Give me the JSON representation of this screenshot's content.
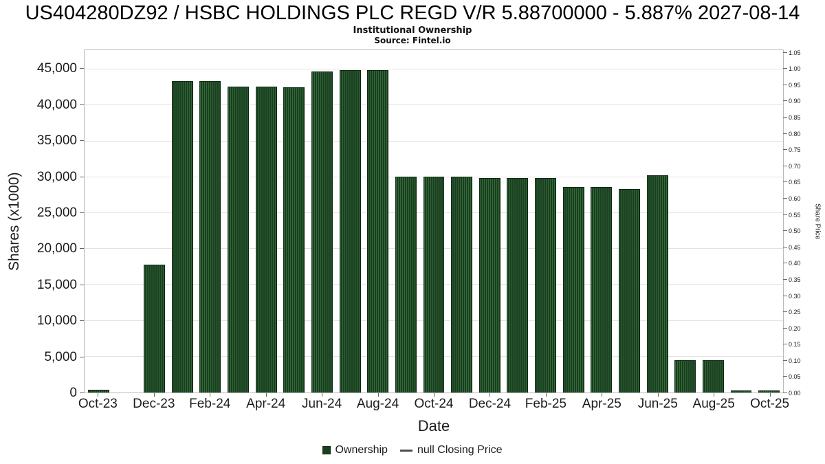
{
  "header": {
    "title": "US404280DZ92 / HSBC HOLDINGS PLC REGD V/R 5.88700000 - 5.887% 2027-08-14",
    "subtitle": "Institutional Ownership",
    "source": "Source: Fintel.io"
  },
  "axes": {
    "left_label": "Shares (x1000)",
    "right_label": "Share Price",
    "x_label": "Date"
  },
  "legend": {
    "ownership_label": "Ownership",
    "price_label": "null Closing Price"
  },
  "colors": {
    "bar_dark": "#1a3f20",
    "bar_stripe": "#336839",
    "bar_border": "#0e2913",
    "gridline": "#e2e2e2",
    "plot_border": "#b9b9b9"
  },
  "chart_data": {
    "type": "bar",
    "title": "Institutional Ownership",
    "xlabel": "Date",
    "ylabel_left": "Shares (x1000)",
    "ylabel_right": "Share Price",
    "ylim_left": [
      0,
      47700
    ],
    "right_scale_shares_per_price_unit": 45000,
    "grid": "horizontal",
    "legend_position": "bottom",
    "months": [
      "Oct-23",
      "Nov-23",
      "Dec-23",
      "Jan-24",
      "Feb-24",
      "Mar-24",
      "Apr-24",
      "May-24",
      "Jun-24",
      "Jul-24",
      "Aug-24",
      "Sep-24",
      "Oct-24",
      "Nov-24",
      "Dec-24",
      "Jan-25",
      "Feb-25",
      "Mar-25",
      "Apr-25",
      "May-25",
      "Jun-25",
      "Jul-25",
      "Aug-25",
      "Sep-25",
      "Oct-25"
    ],
    "ownership_shares_x1000": [
      400,
      0,
      17800,
      43400,
      43400,
      42600,
      42600,
      42500,
      44700,
      44900,
      44900,
      30100,
      30100,
      30100,
      29900,
      29900,
      29900,
      28600,
      28600,
      28400,
      30300,
      4500,
      4500,
      300,
      300
    ],
    "x_ticks": [
      {
        "month_index": 0,
        "label": "Oct-23"
      },
      {
        "month_index": 2,
        "label": "Dec-23"
      },
      {
        "month_index": 4,
        "label": "Feb-24"
      },
      {
        "month_index": 6,
        "label": "Apr-24"
      },
      {
        "month_index": 8,
        "label": "Jun-24"
      },
      {
        "month_index": 10,
        "label": "Aug-24"
      },
      {
        "month_index": 12,
        "label": "Oct-24"
      },
      {
        "month_index": 14,
        "label": "Dec-24"
      },
      {
        "month_index": 16,
        "label": "Feb-25"
      },
      {
        "month_index": 18,
        "label": "Apr-25"
      },
      {
        "month_index": 20,
        "label": "Jun-25"
      },
      {
        "month_index": 22,
        "label": "Aug-25"
      },
      {
        "month_index": 24,
        "label": "Oct-25"
      }
    ],
    "left_ticks": [
      {
        "value": 0,
        "label": "0"
      },
      {
        "value": 5000,
        "label": "5,000"
      },
      {
        "value": 10000,
        "label": "10,000"
      },
      {
        "value": 15000,
        "label": "15,000"
      },
      {
        "value": 20000,
        "label": "20,000"
      },
      {
        "value": 25000,
        "label": "25,000"
      },
      {
        "value": 30000,
        "label": "30,000"
      },
      {
        "value": 35000,
        "label": "35,000"
      },
      {
        "value": 40000,
        "label": "40,000"
      },
      {
        "value": 45000,
        "label": "45,000"
      }
    ],
    "right_ticks": [
      {
        "value": 0,
        "label": "0.00"
      },
      {
        "value": 0.05,
        "label": "0.05"
      },
      {
        "value": 0.1,
        "label": "0.10"
      },
      {
        "value": 0.15,
        "label": "0.15"
      },
      {
        "value": 0.2,
        "label": "0.20"
      },
      {
        "value": 0.25,
        "label": "0.25"
      },
      {
        "value": 0.3,
        "label": "0.30"
      },
      {
        "value": 0.35,
        "label": "0.35"
      },
      {
        "value": 0.4,
        "label": "0.40"
      },
      {
        "value": 0.45,
        "label": "0.45"
      },
      {
        "value": 0.5,
        "label": "0.50"
      },
      {
        "value": 0.55,
        "label": "0.55"
      },
      {
        "value": 0.6,
        "label": "0.60"
      },
      {
        "value": 0.65,
        "label": "0.65"
      },
      {
        "value": 0.7,
        "label": "0.70"
      },
      {
        "value": 0.75,
        "label": "0.75"
      },
      {
        "value": 0.8,
        "label": "0.80"
      },
      {
        "value": 0.85,
        "label": "0.85"
      },
      {
        "value": 0.9,
        "label": "0.90"
      },
      {
        "value": 0.95,
        "label": "0.95"
      },
      {
        "value": 1,
        "label": "1.00"
      },
      {
        "value": 1.05,
        "label": "1.05"
      }
    ]
  }
}
